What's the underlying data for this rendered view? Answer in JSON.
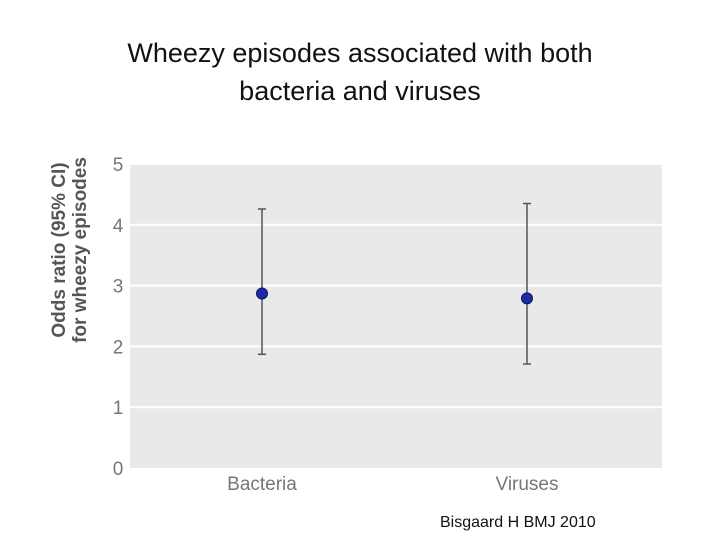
{
  "title_lines": [
    "Wheezy episodes associated with both",
    "bacteria and viruses"
  ],
  "source": "Bisgaard H BMJ 2010",
  "colors": {
    "plot_bg": "#e9e9e9",
    "gridline": "#ffffff",
    "point": "#1f2aa8",
    "errorbar": "#555555",
    "tick_text": "#777777",
    "axis_label": "#555555"
  },
  "chart_data": {
    "type": "scatter",
    "subtype": "point-with-error-bars",
    "title": "Wheezy episodes associated with both bacteria and viruses",
    "ylabel_lines": [
      "Odds ratio (95% CI)",
      "for wheezy episodes"
    ],
    "xlabel": "",
    "categories": [
      "Bacteria",
      "Viruses"
    ],
    "values": [
      2.87,
      2.79
    ],
    "ci_lower": [
      1.87,
      1.71
    ],
    "ci_upper": [
      4.26,
      4.35
    ],
    "ylim": [
      0,
      5
    ],
    "yticks": [
      0,
      1,
      2,
      3,
      4,
      5
    ],
    "ytick_labels": [
      "0",
      "1",
      "2",
      "3",
      "4",
      "5"
    ],
    "grid": true,
    "legend": "none"
  }
}
